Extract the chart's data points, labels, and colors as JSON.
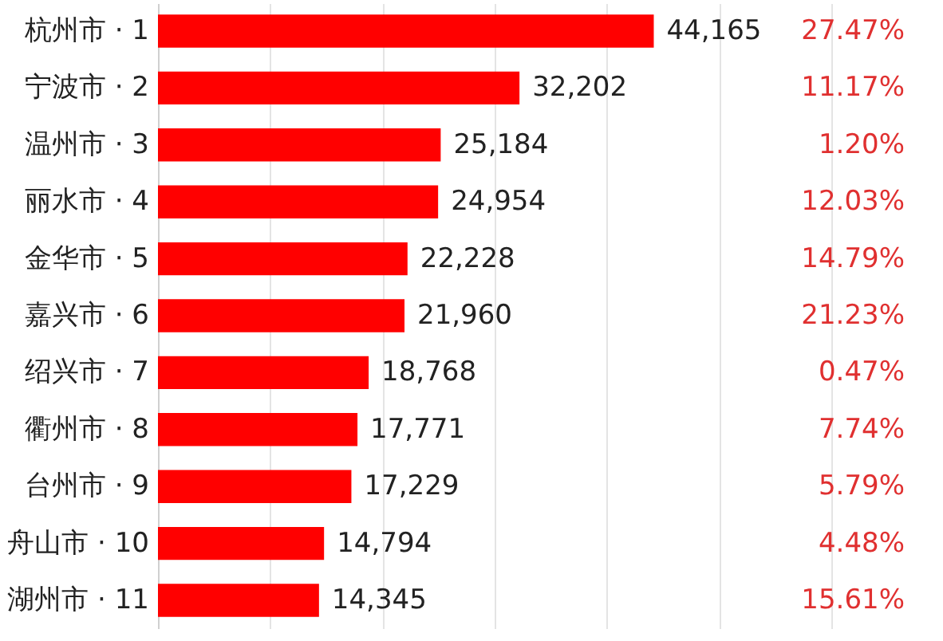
{
  "chart_data": {
    "type": "bar",
    "orientation": "horizontal",
    "categories": [
      "杭州市 · 1",
      "宁波市 · 2",
      "温州市 · 3",
      "丽水市 · 4",
      "金华市 · 5",
      "嘉兴市 · 6",
      "绍兴市 · 7",
      "衢州市 · 8",
      "台州市 · 9",
      "舟山市 · 10",
      "湖州市 · 11"
    ],
    "values": [
      44165,
      32202,
      25184,
      24954,
      22228,
      21960,
      18768,
      17771,
      17229,
      14794,
      14345
    ],
    "value_labels": [
      "44,165",
      "32,202",
      "25,184",
      "24,954",
      "22,228",
      "21,960",
      "18,768",
      "17,771",
      "17,229",
      "14,794",
      "14,345"
    ],
    "color": "#ff0000",
    "xlim": [
      0,
      66800
    ],
    "xticks": [
      {
        "value": 0,
        "label": null
      },
      {
        "value": 10000,
        "label": null
      },
      {
        "value": 20000,
        "label": null
      },
      {
        "value": 30000,
        "label": null
      },
      {
        "value": 40000,
        "label": null
      },
      {
        "value": 50000,
        "label": null
      },
      {
        "value": 60000,
        "label": null
      }
    ],
    "grid": "x",
    "tick_labels": "y",
    "annotations": [
      "27.47%",
      "11.17%",
      "1.20%",
      "12.03%",
      "14.79%",
      "21.23%",
      "0.47%",
      "7.74%",
      "5.79%",
      "4.48%",
      "15.61%"
    ]
  }
}
